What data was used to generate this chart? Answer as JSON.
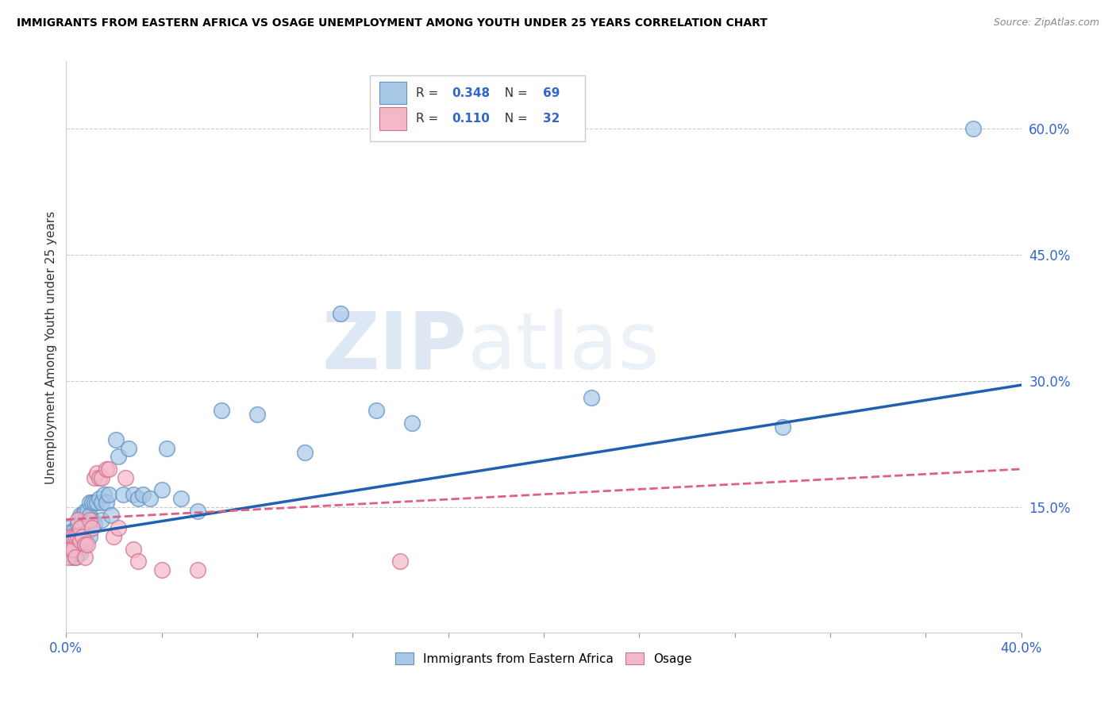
{
  "title": "IMMIGRANTS FROM EASTERN AFRICA VS OSAGE UNEMPLOYMENT AMONG YOUTH UNDER 25 YEARS CORRELATION CHART",
  "source": "Source: ZipAtlas.com",
  "ylabel": "Unemployment Among Youth under 25 years",
  "xlim": [
    0.0,
    0.4
  ],
  "ylim": [
    0.0,
    0.68
  ],
  "xticks": [
    0.0,
    0.04,
    0.08,
    0.12,
    0.16,
    0.2,
    0.24,
    0.28,
    0.32,
    0.36,
    0.4
  ],
  "ytick_right_vals": [
    0.15,
    0.3,
    0.45,
    0.6
  ],
  "ytick_right_labels": [
    "15.0%",
    "30.0%",
    "45.0%",
    "60.0%"
  ],
  "blue_color": "#a8c8e8",
  "pink_color": "#f4b8c8",
  "blue_edge_color": "#6090c0",
  "pink_edge_color": "#d07090",
  "blue_line_color": "#2060b0",
  "pink_line_color": "#e06080",
  "legend_R_blue": "0.348",
  "legend_N_blue": "69",
  "legend_R_pink": "0.110",
  "legend_N_pink": "32",
  "watermark_zip": "ZIP",
  "watermark_atlas": "atlas",
  "blue_scatter_x": [
    0.001,
    0.001,
    0.001,
    0.002,
    0.002,
    0.002,
    0.002,
    0.003,
    0.003,
    0.003,
    0.003,
    0.003,
    0.004,
    0.004,
    0.004,
    0.004,
    0.005,
    0.005,
    0.005,
    0.005,
    0.006,
    0.006,
    0.006,
    0.006,
    0.006,
    0.007,
    0.007,
    0.007,
    0.008,
    0.008,
    0.008,
    0.009,
    0.009,
    0.01,
    0.01,
    0.01,
    0.011,
    0.011,
    0.012,
    0.012,
    0.013,
    0.014,
    0.015,
    0.015,
    0.016,
    0.017,
    0.018,
    0.019,
    0.021,
    0.022,
    0.024,
    0.026,
    0.028,
    0.03,
    0.032,
    0.035,
    0.04,
    0.042,
    0.048,
    0.055,
    0.065,
    0.08,
    0.1,
    0.115,
    0.13,
    0.145,
    0.22,
    0.3,
    0.38
  ],
  "blue_scatter_y": [
    0.125,
    0.115,
    0.105,
    0.12,
    0.11,
    0.105,
    0.095,
    0.115,
    0.12,
    0.105,
    0.095,
    0.09,
    0.115,
    0.105,
    0.1,
    0.09,
    0.13,
    0.115,
    0.105,
    0.095,
    0.14,
    0.125,
    0.115,
    0.105,
    0.095,
    0.14,
    0.125,
    0.105,
    0.145,
    0.13,
    0.105,
    0.145,
    0.12,
    0.155,
    0.14,
    0.115,
    0.155,
    0.135,
    0.155,
    0.13,
    0.155,
    0.16,
    0.155,
    0.135,
    0.165,
    0.155,
    0.165,
    0.14,
    0.23,
    0.21,
    0.165,
    0.22,
    0.165,
    0.16,
    0.165,
    0.16,
    0.17,
    0.22,
    0.16,
    0.145,
    0.265,
    0.26,
    0.215,
    0.38,
    0.265,
    0.25,
    0.28,
    0.245,
    0.6
  ],
  "pink_scatter_x": [
    0.001,
    0.001,
    0.002,
    0.002,
    0.003,
    0.003,
    0.004,
    0.004,
    0.005,
    0.005,
    0.006,
    0.006,
    0.007,
    0.008,
    0.008,
    0.009,
    0.01,
    0.011,
    0.012,
    0.013,
    0.014,
    0.015,
    0.017,
    0.018,
    0.02,
    0.022,
    0.025,
    0.028,
    0.03,
    0.04,
    0.055,
    0.14
  ],
  "pink_scatter_y": [
    0.1,
    0.09,
    0.115,
    0.1,
    0.115,
    0.1,
    0.115,
    0.09,
    0.135,
    0.115,
    0.125,
    0.11,
    0.115,
    0.105,
    0.09,
    0.105,
    0.135,
    0.125,
    0.185,
    0.19,
    0.185,
    0.185,
    0.195,
    0.195,
    0.115,
    0.125,
    0.185,
    0.1,
    0.085,
    0.075,
    0.075,
    0.085
  ],
  "blue_trend_x": [
    0.0,
    0.4
  ],
  "blue_trend_y": [
    0.115,
    0.295
  ],
  "pink_trend_x": [
    0.0,
    0.4
  ],
  "pink_trend_y": [
    0.135,
    0.195
  ]
}
